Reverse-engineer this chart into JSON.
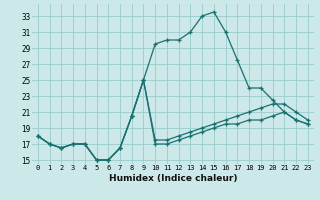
{
  "xlabel": "Humidex (Indice chaleur)",
  "bg_color": "#cce8e8",
  "grid_color": "#99cccc",
  "line_color": "#1a7070",
  "xlim": [
    -0.5,
    23.5
  ],
  "ylim": [
    14.5,
    34.5
  ],
  "xticks": [
    0,
    1,
    2,
    3,
    4,
    5,
    6,
    7,
    8,
    9,
    10,
    11,
    12,
    13,
    14,
    15,
    16,
    17,
    18,
    19,
    20,
    21,
    22,
    23
  ],
  "yticks": [
    15,
    17,
    19,
    21,
    23,
    25,
    27,
    29,
    31,
    33
  ],
  "series1_x": [
    0,
    1,
    2,
    3,
    4,
    5,
    6,
    7,
    8,
    9,
    10,
    11,
    12,
    13,
    14,
    15,
    16,
    17,
    18,
    19,
    20,
    21,
    22,
    23
  ],
  "series1_y": [
    18,
    17,
    16.5,
    17,
    17,
    15,
    15,
    16.5,
    20.5,
    25,
    29.5,
    30,
    30,
    31,
    33,
    33.5,
    31,
    27.5,
    24,
    24,
    22.5,
    21,
    20,
    19.5
  ],
  "series2_x": [
    0,
    1,
    2,
    3,
    4,
    5,
    6,
    7,
    8,
    9,
    10,
    11,
    12,
    13,
    14,
    15,
    16,
    17,
    18,
    19,
    20,
    21,
    22,
    23
  ],
  "series2_y": [
    18,
    17,
    16.5,
    17,
    17,
    15,
    15,
    16.5,
    20.5,
    25,
    17.5,
    17.5,
    18,
    18.5,
    19,
    19.5,
    20,
    20.5,
    21,
    21.5,
    22,
    22,
    21,
    20
  ],
  "series3_x": [
    0,
    1,
    2,
    3,
    4,
    5,
    6,
    7,
    8,
    9,
    10,
    11,
    12,
    13,
    14,
    15,
    16,
    17,
    18,
    19,
    20,
    21,
    22,
    23
  ],
  "series3_y": [
    18,
    17,
    16.5,
    17,
    17,
    15,
    15,
    16.5,
    20.5,
    25,
    17,
    17,
    17.5,
    18,
    18.5,
    19,
    19.5,
    19.5,
    20,
    20,
    20.5,
    21,
    20,
    19.5
  ]
}
